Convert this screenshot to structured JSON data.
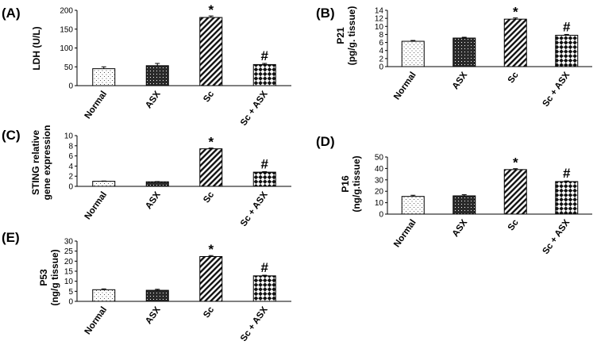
{
  "figure": {
    "categories": [
      "Normal",
      "ASX",
      "Sc",
      "Sc + ASX"
    ],
    "patterns": [
      "dots-light",
      "dots-dark",
      "diagonal-stripes",
      "checker"
    ]
  },
  "chart_data": [
    {
      "panel": "(A)",
      "type": "bar",
      "categories": [
        "Normal",
        "ASX",
        "Sc",
        "Sc + ASX"
      ],
      "values": [
        45,
        53,
        181,
        56
      ],
      "errors": [
        5,
        6,
        4,
        3
      ],
      "ylabel_lines": [
        "LDH (U/L)"
      ],
      "ylim": [
        0,
        200
      ],
      "yticks": [
        0,
        50,
        100,
        150,
        200
      ],
      "significance": [
        "",
        "",
        "*",
        "#"
      ]
    },
    {
      "panel": "(B)",
      "type": "bar",
      "categories": [
        "Normal",
        "ASX",
        "Sc",
        "Sc + ASX"
      ],
      "values": [
        6.3,
        7.1,
        11.8,
        7.8
      ],
      "errors": [
        0.2,
        0.2,
        0.3,
        0.2
      ],
      "ylabel_lines": [
        "P21",
        "(pg/g. tissue)"
      ],
      "ylim": [
        0,
        14
      ],
      "yticks": [
        0,
        2,
        4,
        6,
        8,
        10,
        12,
        14
      ],
      "significance": [
        "",
        "",
        "*",
        "#"
      ]
    },
    {
      "panel": "(C)",
      "type": "bar",
      "categories": [
        "Normal",
        "ASX",
        "Sc",
        "Sc + ASX"
      ],
      "values": [
        1.0,
        0.9,
        7.4,
        2.8
      ],
      "errors": [
        0.05,
        0.05,
        0.15,
        0.1
      ],
      "ylabel_lines": [
        "STING relative",
        "gene expression"
      ],
      "ylim": [
        0,
        10
      ],
      "yticks": [
        0,
        2,
        4,
        6,
        8,
        10
      ],
      "significance": [
        "",
        "",
        "*",
        "#"
      ]
    },
    {
      "panel": "(D)",
      "type": "bar",
      "categories": [
        "Normal",
        "ASX",
        "Sc",
        "Sc + ASX"
      ],
      "values": [
        15.5,
        16,
        39,
        28.5
      ],
      "errors": [
        1,
        1,
        0.8,
        0.5
      ],
      "ylabel_lines": [
        "P16",
        "(ng/g.tissue)"
      ],
      "ylim": [
        0,
        50
      ],
      "yticks": [
        0,
        10,
        20,
        30,
        40,
        50
      ],
      "significance": [
        "",
        "",
        "*",
        "#"
      ]
    },
    {
      "panel": "(E)",
      "type": "bar",
      "categories": [
        "Normal",
        "ASX",
        "Sc",
        "Sc + ASX"
      ],
      "values": [
        5.8,
        5.5,
        22.3,
        12.7
      ],
      "errors": [
        0.4,
        0.5,
        0.5,
        0.3
      ],
      "ylabel_lines": [
        "P53",
        "(ng/g tissue)"
      ],
      "ylim": [
        0,
        30
      ],
      "yticks": [
        0,
        5,
        10,
        15,
        20,
        25,
        30
      ],
      "significance": [
        "",
        "",
        "*",
        "#"
      ]
    }
  ]
}
